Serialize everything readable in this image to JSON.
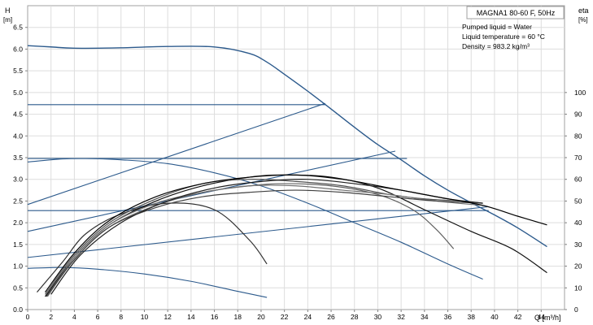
{
  "chart_data": {
    "type": "line",
    "title": "MAGNA1 80-60 F, 50Hz",
    "annotations": [
      "Pumped liquid = Water",
      "Liquid temperature = 60 °C",
      "Density = 983.2 kg/m³"
    ],
    "y_left_label": "H",
    "y_left_unit": "[m]",
    "y_right_label": "eta",
    "y_right_unit": "[%]",
    "x_label": "Q [m³/h]",
    "xlim": [
      0,
      46
    ],
    "ylim": [
      0,
      7
    ],
    "ylim_right": [
      0,
      140
    ],
    "x_ticks": [
      "0",
      "2",
      "4",
      "6",
      "8",
      "10",
      "12",
      "14",
      "16",
      "18",
      "20",
      "22",
      "24",
      "26",
      "28",
      "30",
      "32",
      "34",
      "36",
      "38",
      "40",
      "42",
      "44"
    ],
    "y_left_ticks": [
      "0.0",
      "0.5",
      "1.0",
      "1.5",
      "2.0",
      "2.5",
      "3.0",
      "3.5",
      "4.0",
      "4.5",
      "5.0",
      "5.5",
      "6.0",
      "6.5"
    ],
    "y_right_ticks": [
      "0",
      "10",
      "20",
      "30",
      "40",
      "50",
      "60",
      "70",
      "80",
      "90",
      "100"
    ],
    "grid": true,
    "colors": {
      "head_curves": "#2c5a8c",
      "eff_curves": "#202020",
      "grid": "#dddddd"
    },
    "head_curves": [
      {
        "points": [
          [
            0,
            6.08
          ],
          [
            2,
            6.05
          ],
          [
            4,
            6.02
          ],
          [
            8,
            6.03
          ],
          [
            12,
            6.06
          ],
          [
            16,
            6.05
          ],
          [
            19,
            5.9
          ],
          [
            20.5,
            5.7
          ],
          [
            22,
            5.42
          ],
          [
            24,
            5.03
          ],
          [
            26,
            4.62
          ],
          [
            28,
            4.2
          ],
          [
            30,
            3.8
          ],
          [
            32,
            3.45
          ],
          [
            34,
            3.08
          ],
          [
            36,
            2.75
          ],
          [
            38,
            2.46
          ],
          [
            40,
            2.18
          ],
          [
            42,
            1.88
          ],
          [
            44.5,
            1.45
          ]
        ]
      },
      {
        "points": [
          [
            0,
            3.4
          ],
          [
            3,
            3.47
          ],
          [
            5,
            3.48
          ],
          [
            8,
            3.45
          ],
          [
            12,
            3.36
          ],
          [
            16,
            3.15
          ],
          [
            20,
            2.85
          ],
          [
            24,
            2.45
          ],
          [
            28,
            2.0
          ],
          [
            32,
            1.55
          ],
          [
            36,
            1.05
          ],
          [
            39,
            0.7
          ]
        ]
      },
      {
        "points": [
          [
            0,
            0.95
          ],
          [
            3,
            0.97
          ],
          [
            6,
            0.93
          ],
          [
            10,
            0.82
          ],
          [
            14,
            0.65
          ],
          [
            18,
            0.42
          ],
          [
            20.5,
            0.28
          ]
        ]
      }
    ],
    "system_lines": [
      {
        "points": [
          [
            0,
            4.72
          ],
          [
            25.5,
            4.72
          ]
        ]
      },
      {
        "points": [
          [
            0,
            3.48
          ],
          [
            32.5,
            3.48
          ]
        ]
      },
      {
        "points": [
          [
            0,
            2.28
          ],
          [
            39.5,
            2.28
          ]
        ]
      },
      {
        "points": [
          [
            0,
            2.42
          ],
          [
            25.5,
            4.75
          ]
        ]
      },
      {
        "points": [
          [
            0,
            1.8
          ],
          [
            31.5,
            3.65
          ]
        ]
      },
      {
        "points": [
          [
            0,
            1.2
          ],
          [
            39.5,
            2.37
          ]
        ]
      }
    ],
    "efficiency_curves": [
      {
        "points": [
          [
            0.8,
            8
          ],
          [
            3,
            22
          ],
          [
            5,
            35
          ],
          [
            8,
            44
          ],
          [
            12,
            49
          ],
          [
            16,
            46
          ],
          [
            19,
            32
          ],
          [
            20.5,
            21
          ]
        ]
      },
      {
        "points": [
          [
            1.8,
            7
          ],
          [
            4,
            23
          ],
          [
            7,
            38
          ],
          [
            11,
            48
          ],
          [
            15,
            54
          ],
          [
            19,
            57
          ],
          [
            22,
            58
          ],
          [
            26,
            57
          ],
          [
            30,
            53
          ],
          [
            33,
            46
          ],
          [
            35,
            37
          ],
          [
            36.5,
            28
          ]
        ]
      },
      {
        "points": [
          [
            1.5,
            6
          ],
          [
            4,
            24
          ],
          [
            7,
            39
          ],
          [
            11,
            50
          ],
          [
            15,
            57
          ],
          [
            19,
            61
          ],
          [
            22,
            62
          ],
          [
            26,
            61
          ],
          [
            30,
            56
          ],
          [
            34,
            46
          ],
          [
            38,
            36
          ],
          [
            41.5,
            28
          ],
          [
            44.5,
            17
          ]
        ]
      },
      {
        "points": [
          [
            1.5,
            7
          ],
          [
            4,
            25
          ],
          [
            7,
            40
          ],
          [
            11,
            51
          ],
          [
            15,
            58
          ],
          [
            19,
            60
          ],
          [
            23,
            59
          ],
          [
            27,
            57
          ],
          [
            31,
            53
          ],
          [
            34,
            51
          ],
          [
            37,
            50
          ],
          [
            39,
            49
          ]
        ]
      },
      {
        "points": [
          [
            1.7,
            6
          ],
          [
            4,
            24
          ],
          [
            7,
            39
          ],
          [
            11,
            49
          ],
          [
            15,
            54
          ],
          [
            19,
            57
          ],
          [
            23,
            57
          ],
          [
            27,
            55
          ],
          [
            31,
            53
          ],
          [
            35,
            50
          ],
          [
            39,
            48
          ]
        ]
      },
      {
        "points": [
          [
            1.6,
            6
          ],
          [
            4,
            23
          ],
          [
            7,
            38
          ],
          [
            11,
            47
          ],
          [
            15,
            52
          ],
          [
            19,
            54
          ],
          [
            23,
            55
          ],
          [
            27,
            54
          ],
          [
            31,
            52
          ],
          [
            35,
            50
          ],
          [
            39,
            49
          ]
        ]
      },
      {
        "points": [
          [
            2,
            7
          ],
          [
            4.5,
            25
          ],
          [
            8,
            40
          ],
          [
            12,
            50
          ],
          [
            16,
            56
          ],
          [
            20,
            59
          ],
          [
            24,
            60
          ],
          [
            28,
            58
          ],
          [
            32,
            55
          ],
          [
            36,
            51
          ],
          [
            39,
            49
          ]
        ]
      },
      {
        "points": [
          [
            1.5,
            8
          ],
          [
            4,
            26
          ],
          [
            7,
            41
          ],
          [
            11,
            52
          ],
          [
            15,
            58
          ],
          [
            19,
            61
          ],
          [
            23,
            62
          ],
          [
            27,
            60
          ],
          [
            31,
            56
          ],
          [
            35,
            52
          ],
          [
            39,
            48
          ],
          [
            42,
            43
          ],
          [
            44.5,
            39
          ]
        ]
      }
    ]
  }
}
